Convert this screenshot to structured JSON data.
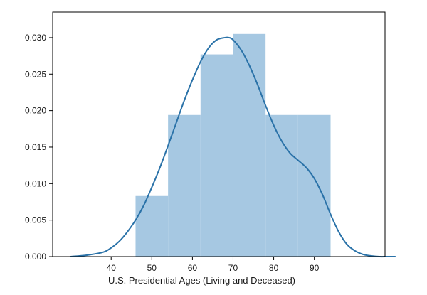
{
  "chart_data": {
    "type": "bar",
    "title": "",
    "xlabel": "U.S. Presidential Ages (Living and Deceased)",
    "ylabel": "",
    "xlim": [
      25.6,
      107.4
    ],
    "ylim": [
      0,
      0.0335
    ],
    "grid": false,
    "x_ticks": [
      40,
      50,
      60,
      70,
      80,
      90
    ],
    "y_ticks": [
      0.0,
      0.005,
      0.01,
      0.015,
      0.02,
      0.025,
      0.03
    ],
    "y_tick_labels": [
      "0.000",
      "0.005",
      "0.010",
      "0.015",
      "0.020",
      "0.025",
      "0.030"
    ],
    "bins": [
      {
        "x0": 46.0,
        "x1": 54.0,
        "density": 0.0083
      },
      {
        "x0": 54.0,
        "x1": 62.0,
        "density": 0.0194
      },
      {
        "x0": 62.0,
        "x1": 70.0,
        "density": 0.0277
      },
      {
        "x0": 70.0,
        "x1": 78.0,
        "density": 0.0305
      },
      {
        "x0": 78.0,
        "x1": 86.0,
        "density": 0.0194
      },
      {
        "x0": 86.0,
        "x1": 94.0,
        "density": 0.0194
      }
    ],
    "kde": {
      "x": [
        30,
        34,
        38,
        40,
        42,
        44,
        46,
        48,
        50,
        52,
        54,
        56,
        58,
        60,
        62,
        64,
        66,
        68,
        69,
        70,
        72,
        74,
        76,
        78,
        80,
        82,
        84,
        86,
        88,
        90,
        92,
        94,
        96,
        98,
        100,
        102,
        104,
        106,
        108,
        110
      ],
      "y": [
        0.0,
        0.0002,
        0.0006,
        0.0012,
        0.0021,
        0.0034,
        0.005,
        0.007,
        0.0095,
        0.0122,
        0.0152,
        0.0183,
        0.0214,
        0.0242,
        0.0267,
        0.0286,
        0.0297,
        0.03,
        0.03,
        0.0297,
        0.0283,
        0.0262,
        0.0236,
        0.0207,
        0.018,
        0.0158,
        0.0142,
        0.0132,
        0.0122,
        0.0107,
        0.0085,
        0.0058,
        0.0034,
        0.0017,
        0.0008,
        0.0003,
        0.0001,
        0.0,
        0.0,
        0.0
      ]
    },
    "colors": {
      "bar_fill": "#a6c8e2",
      "kde_line": "#2a72a8",
      "axis": "#000000"
    }
  }
}
